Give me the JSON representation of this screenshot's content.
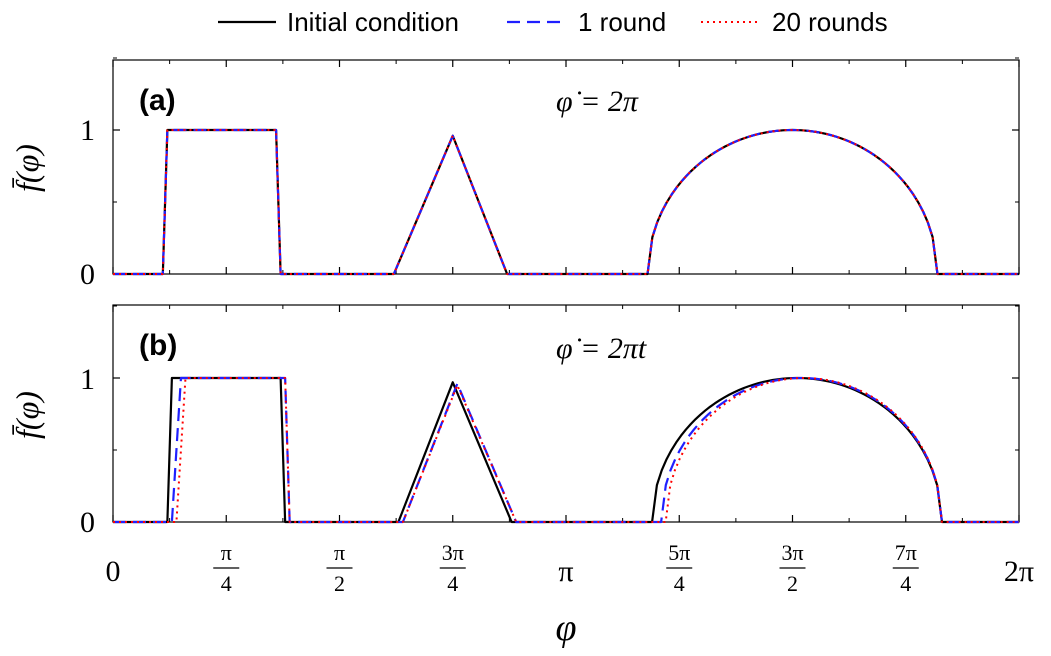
{
  "legend": {
    "entries": [
      {
        "label": "Initial condition",
        "color": "#000000",
        "style": "solid"
      },
      {
        "label": "1 round",
        "color": "#1f1fff",
        "style": "dashed"
      },
      {
        "label": "20 rounds",
        "color": "#ff0000",
        "style": "dotted"
      }
    ],
    "placement": "top-center"
  },
  "xaxis": {
    "label": "φ",
    "ticks": [
      {
        "value": 0,
        "label": "0"
      },
      {
        "value": 0.25,
        "num": "π",
        "den": "4"
      },
      {
        "value": 0.5,
        "num": "π",
        "den": "2"
      },
      {
        "value": 0.75,
        "num": "3π",
        "den": "4"
      },
      {
        "value": 1.0,
        "label": "π"
      },
      {
        "value": 1.25,
        "num": "5π",
        "den": "4"
      },
      {
        "value": 1.5,
        "num": "3π",
        "den": "2"
      },
      {
        "value": 1.75,
        "num": "7π",
        "den": "4"
      },
      {
        "value": 2.0,
        "label": "2π"
      }
    ],
    "range_in_pi": [
      0,
      2
    ]
  },
  "chart_data": [
    {
      "type": "line",
      "panel_label": "(a)",
      "annotation": "φ̇ = 2π",
      "ylabel": "f̄(φ)",
      "yticks": [
        0,
        1
      ],
      "ylim": [
        0,
        1.5
      ],
      "xlim_in_pi": [
        0,
        2
      ],
      "grid": false,
      "series": [
        {
          "name": "Initial condition",
          "color": "#000000",
          "x_in_pi": [
            0,
            0.11,
            0.12,
            0.36,
            0.37,
            0.62,
            0.75,
            0.87,
            1.17,
            1.18,
            1.5,
            1.82,
            1.83,
            2.0
          ],
          "y": [
            0,
            0,
            1,
            1,
            0,
            0,
            0.96,
            0,
            0,
            0,
            1,
            0,
            0,
            0
          ],
          "shape": "semicircle 1.18-1.82"
        },
        {
          "name": "1 round",
          "color": "#1f1fff",
          "x_in_pi": [
            0,
            0.11,
            0.12,
            0.36,
            0.37,
            0.62,
            0.75,
            0.87,
            1.17,
            1.18,
            1.5,
            1.82,
            1.83,
            2.0
          ],
          "y": [
            0,
            0,
            1,
            1,
            0,
            0,
            0.96,
            0,
            0,
            0,
            1,
            0,
            0,
            0
          ],
          "shape": "semicircle 1.18-1.82"
        },
        {
          "name": "20 rounds",
          "color": "#ff0000",
          "x_in_pi": [
            0,
            0.11,
            0.12,
            0.36,
            0.37,
            0.62,
            0.75,
            0.87,
            1.17,
            1.18,
            1.5,
            1.82,
            1.83,
            2.0
          ],
          "y": [
            0,
            0,
            1,
            1,
            0,
            0,
            0.96,
            0,
            0,
            0,
            1,
            0,
            0,
            0
          ],
          "shape": "semicircle 1.18-1.82"
        }
      ]
    },
    {
      "type": "line",
      "panel_label": "(b)",
      "annotation": "φ̇ = 2πt",
      "ylabel": "f̄(φ)",
      "yticks": [
        0,
        1
      ],
      "ylim": [
        0,
        1.5
      ],
      "xlim_in_pi": [
        0,
        2
      ],
      "grid": false,
      "series": [
        {
          "name": "Initial condition",
          "color": "#000000",
          "x_in_pi": [
            0,
            0.12,
            0.13,
            0.37,
            0.38,
            0.63,
            0.75,
            0.88,
            1.18,
            1.19,
            1.5,
            1.83,
            1.84,
            2.0
          ],
          "y": [
            0,
            0,
            1,
            1,
            0,
            0,
            0.97,
            0,
            0,
            0,
            1,
            0,
            0,
            0
          ],
          "shape": "semicircle 1.19-1.83"
        },
        {
          "name": "1 round",
          "color": "#1f1fff",
          "x_in_pi": [
            0,
            0.13,
            0.15,
            0.38,
            0.39,
            0.64,
            0.76,
            0.89,
            1.19,
            1.21,
            1.51,
            1.83,
            1.84,
            2.0
          ],
          "y": [
            0,
            0,
            1,
            1,
            0,
            0,
            0.96,
            0,
            0,
            0,
            1,
            0,
            0,
            0
          ],
          "shape": "semicircle 1.20-1.83"
        },
        {
          "name": "20 rounds",
          "color": "#ff0000",
          "x_in_pi": [
            0,
            0.14,
            0.16,
            0.38,
            0.39,
            0.64,
            0.76,
            0.89,
            1.2,
            1.22,
            1.51,
            1.83,
            1.84,
            2.0
          ],
          "y": [
            0,
            0,
            1,
            1,
            0,
            0,
            0.95,
            0,
            0,
            0,
            1,
            0,
            0,
            0
          ],
          "shape": "semicircle 1.21-1.83"
        }
      ]
    }
  ]
}
